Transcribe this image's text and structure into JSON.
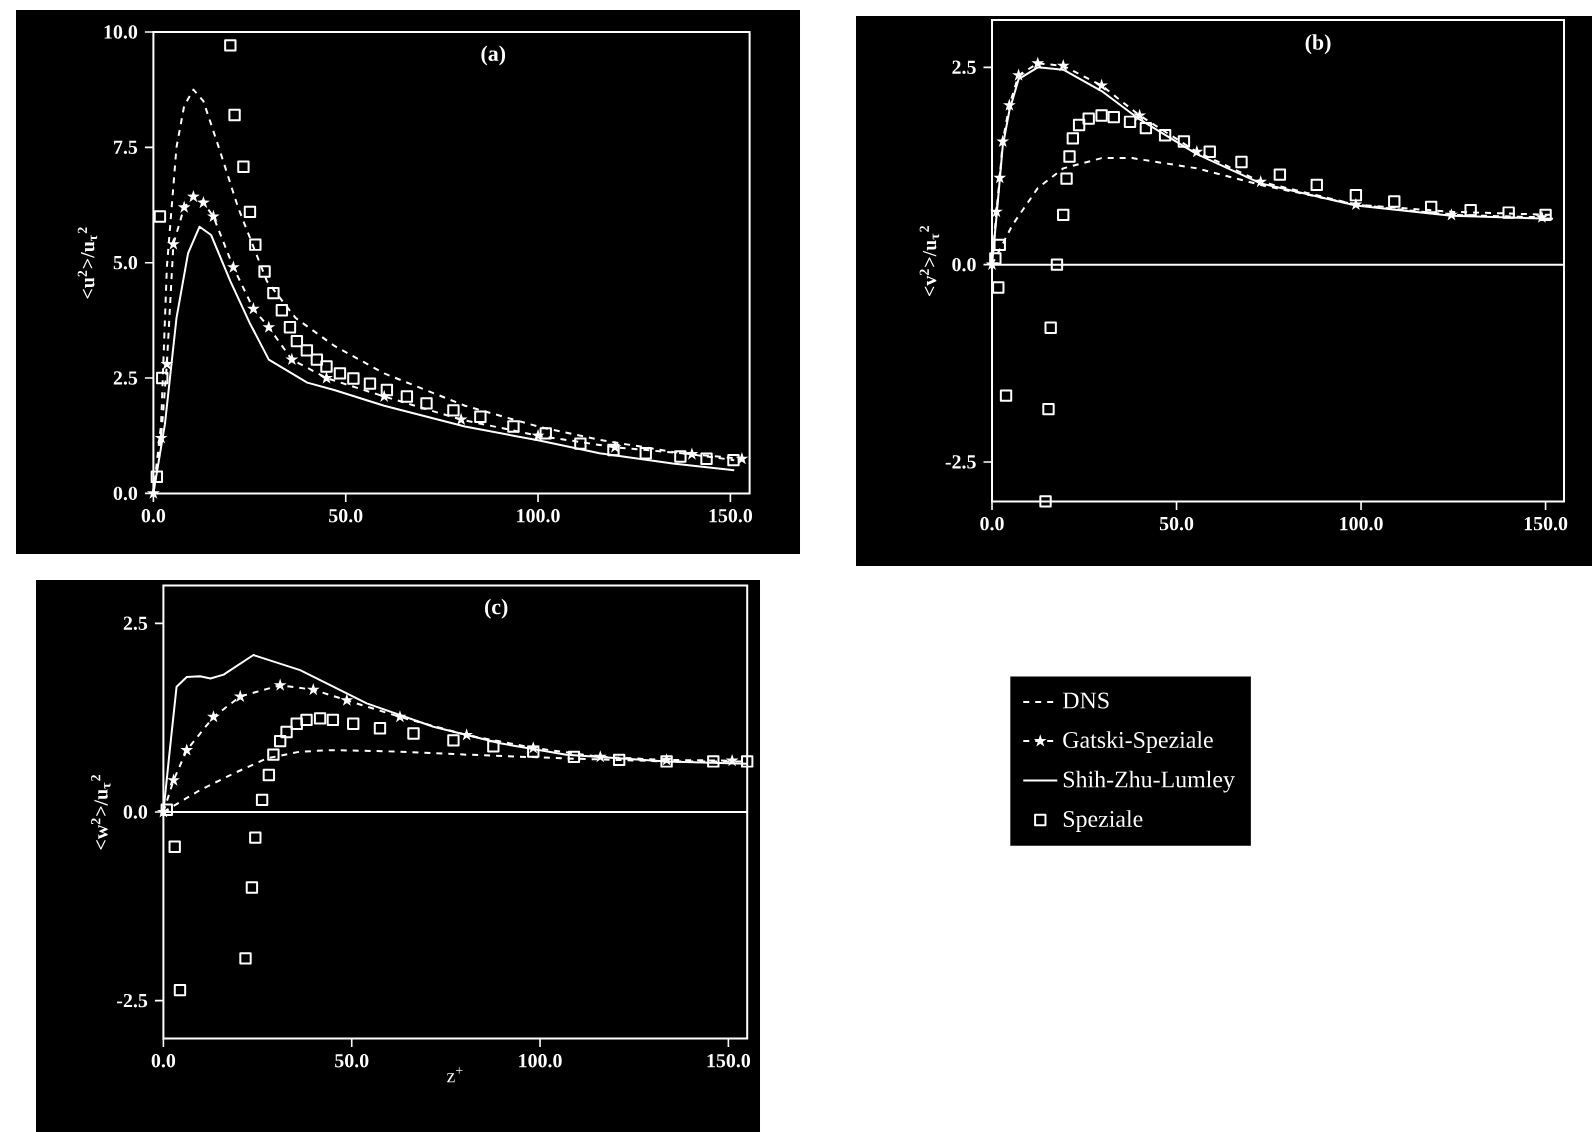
{
  "chart_data": [
    {
      "type": "line",
      "title": "(a)",
      "ylabel": "<u$^{2}$>/u$_{τ}$$^{2}$",
      "xlim": [
        0,
        155
      ],
      "ylim": [
        0,
        10
      ],
      "xticks": [
        {
          "value": 0,
          "label": "0.0"
        },
        {
          "value": 50,
          "label": "50.0"
        },
        {
          "value": 100,
          "label": "100.0"
        },
        {
          "value": 150,
          "label": "150.0"
        }
      ],
      "yticks": [
        {
          "value": 0,
          "label": "0.0"
        },
        {
          "value": 2.5,
          "label": "2.5"
        },
        {
          "value": 5,
          "label": "5.0"
        },
        {
          "value": 7.5,
          "label": "7.5"
        },
        {
          "value": 10,
          "label": "10.0"
        }
      ],
      "series": [
        {
          "type": "line",
          "color": "#ffffff",
          "line_style": "dashed",
          "marker": "none",
          "x": [
            0,
            2,
            3.5,
            6,
            8,
            10.4,
            13,
            17,
            22,
            29.5,
            37,
            47,
            60,
            81,
            100,
            116,
            135,
            151
          ],
          "values": [
            0,
            1.5,
            4.9,
            7.5,
            8.4,
            8.75,
            8.5,
            7.5,
            6.2,
            4.6,
            3.8,
            3.2,
            2.6,
            1.9,
            1.45,
            1.16,
            0.9,
            0.72
          ]
        },
        {
          "type": "line",
          "color": "#ffffff",
          "line_style": "dashed",
          "marker": "star",
          "x": [
            0,
            2,
            3.5,
            5.2,
            8,
            10.4,
            13,
            15.6,
            20.8,
            26,
            30,
            36,
            45,
            60,
            80,
            100,
            120,
            140,
            153
          ],
          "values": [
            0,
            1.2,
            2.8,
            5.4,
            6.2,
            6.43,
            6.3,
            6.0,
            4.9,
            4.0,
            3.6,
            2.9,
            2.5,
            2.1,
            1.6,
            1.25,
            1.0,
            0.85,
            0.75
          ]
        },
        {
          "type": "line",
          "color": "#ffffff",
          "line_style": "solid",
          "marker": "none",
          "x": [
            0,
            3,
            6,
            9,
            12,
            15,
            20,
            25,
            30,
            40,
            47,
            60,
            81,
            100,
            116,
            135,
            151
          ],
          "values": [
            0,
            1.5,
            3.8,
            5.2,
            5.78,
            5.6,
            4.6,
            3.7,
            2.9,
            2.4,
            2.24,
            1.9,
            1.45,
            1.15,
            0.87,
            0.65,
            0.5
          ]
        },
        {
          "type": "scatter",
          "color": "#ffffff",
          "marker": "square",
          "x": [
            0.9,
            1.7,
            2.3,
            20,
            21.1,
            23.4,
            25.1,
            26.5,
            28.9,
            31.2,
            33.4,
            35.5,
            37.3,
            39.9,
            42.5,
            45,
            48.5,
            52,
            56.3,
            60.7,
            65.9,
            71,
            78,
            85,
            93.6,
            102,
            111,
            119.6,
            128,
            137,
            143.8,
            150.8
          ],
          "values": [
            0.36,
            6.0,
            2.5,
            9.71,
            8.2,
            7.08,
            6.1,
            5.39,
            4.81,
            4.34,
            3.97,
            3.6,
            3.3,
            3.1,
            2.9,
            2.75,
            2.6,
            2.49,
            2.38,
            2.24,
            2.1,
            1.95,
            1.8,
            1.66,
            1.45,
            1.3,
            1.08,
            0.94,
            0.87,
            0.8,
            0.75,
            0.72
          ]
        }
      ]
    },
    {
      "type": "line",
      "title": "(b)",
      "ylabel": "<v$^{2}$>/u$_{τ}$$^{2}$",
      "xlim": [
        0,
        155
      ],
      "ylim": [
        -3.0,
        3.1
      ],
      "xticks": [
        {
          "value": 0,
          "label": "0.0"
        },
        {
          "value": 50,
          "label": "50.0"
        },
        {
          "value": 100,
          "label": "100.0"
        },
        {
          "value": 150,
          "label": "150.0"
        }
      ],
      "yticks": [
        {
          "value": -2.5,
          "label": "-2.5"
        },
        {
          "value": 0,
          "label": "0.0"
        },
        {
          "value": 2.5,
          "label": "2.5"
        }
      ],
      "ref_lines": [
        {
          "axis": "y",
          "value": 0,
          "color": "#ffffff"
        }
      ],
      "series": [
        {
          "type": "line",
          "color": "#ffffff",
          "line_style": "dashed",
          "marker": "none",
          "x": [
            0,
            5.5,
            12.4,
            19.3,
            29.7,
            38,
            55.5,
            72.8,
            98.6,
            124.5,
            152
          ],
          "values": [
            0,
            0.5,
            0.97,
            1.22,
            1.35,
            1.35,
            1.22,
            1.01,
            0.76,
            0.67,
            0.63
          ]
        },
        {
          "type": "line",
          "color": "#ffffff",
          "line_style": "dashed",
          "marker": "star",
          "x": [
            0,
            1.2,
            2.1,
            2.9,
            4.7,
            7.2,
            12.4,
            19.3,
            29.7,
            40,
            55.5,
            72.8,
            98.6,
            124.5,
            149
          ],
          "values": [
            0,
            0.67,
            1.1,
            1.56,
            2.02,
            2.4,
            2.55,
            2.52,
            2.27,
            1.89,
            1.43,
            1.05,
            0.76,
            0.63,
            0.6
          ]
        },
        {
          "type": "line",
          "color": "#ffffff",
          "line_style": "solid",
          "marker": "none",
          "x": [
            0,
            1.2,
            2.9,
            4.7,
            7.2,
            12.4,
            19.3,
            29.7,
            40,
            55.5,
            72.8,
            98.6,
            124.5,
            152
          ],
          "values": [
            0,
            0.6,
            1.5,
            1.95,
            2.35,
            2.5,
            2.47,
            2.2,
            1.84,
            1.4,
            1.03,
            0.75,
            0.62,
            0.58
          ]
        },
        {
          "type": "scatter",
          "color": "#ffffff",
          "marker": "square",
          "x": [
            0.9,
            1.7,
            2.1,
            3.8,
            14.5,
            15.3,
            15.9,
            17.6,
            19.3,
            20.2,
            21,
            21.9,
            23.6,
            26.2,
            29.7,
            33,
            37.4,
            41.7,
            46.9,
            52,
            59,
            67.6,
            78,
            88,
            98.6,
            109,
            119,
            129.7,
            140,
            150
          ],
          "values": [
            0.08,
            -0.29,
            0.25,
            -1.66,
            -3.0,
            -1.83,
            -0.8,
            0.0,
            0.63,
            1.09,
            1.37,
            1.6,
            1.77,
            1.85,
            1.89,
            1.87,
            1.81,
            1.73,
            1.64,
            1.56,
            1.43,
            1.3,
            1.14,
            1.01,
            0.88,
            0.8,
            0.73,
            0.69,
            0.66,
            0.63
          ]
        }
      ]
    },
    {
      "type": "line",
      "title": "(c)",
      "xlabel": "z$^{+}$",
      "ylabel": "<w$^{2}$>/u$_{τ}$$^{2}$",
      "xlim": [
        0,
        155
      ],
      "ylim": [
        -3.0,
        3.0
      ],
      "legend": "right",
      "xticks": [
        {
          "value": 0,
          "label": "0.0"
        },
        {
          "value": 50,
          "label": "50.0"
        },
        {
          "value": 100,
          "label": "100.0"
        },
        {
          "value": 150,
          "label": "150.0"
        }
      ],
      "yticks": [
        {
          "value": -2.5,
          "label": "-2.5"
        },
        {
          "value": 0,
          "label": "0.0"
        },
        {
          "value": 2.5,
          "label": "2.5"
        }
      ],
      "ref_lines": [
        {
          "axis": "y",
          "value": 0,
          "color": "#ffffff"
        }
      ],
      "series": [
        {
          "name": "DNS",
          "type": "line",
          "color": "#ffffff",
          "line_style": "dashed",
          "marker": "none",
          "x": [
            0,
            9.7,
            18.6,
            27.4,
            36.3,
            45,
            62.8,
            80.5,
            107,
            133.6,
            154.9
          ],
          "values": [
            0,
            0.29,
            0.51,
            0.71,
            0.8,
            0.82,
            0.8,
            0.76,
            0.71,
            0.67,
            0.67
          ]
        },
        {
          "name": "Gatski-Speziale",
          "type": "line",
          "color": "#ffffff",
          "line_style": "dashed",
          "marker": "star",
          "x": [
            0,
            2.7,
            6.2,
            13.3,
            20.4,
            31,
            39.8,
            48.7,
            62.8,
            80.5,
            98.2,
            116,
            133.6,
            151
          ],
          "values": [
            0,
            0.42,
            0.82,
            1.26,
            1.53,
            1.68,
            1.62,
            1.48,
            1.26,
            1.02,
            0.85,
            0.73,
            0.69,
            0.68
          ]
        },
        {
          "name": "Shih-Zhu-Lumley",
          "type": "line",
          "color": "#ffffff",
          "line_style": "solid",
          "marker": "none",
          "x": [
            0,
            1.8,
            3.5,
            6.2,
            9.7,
            12.5,
            16,
            23.9,
            36.3,
            54,
            71.7,
            89.4,
            107,
            133.6,
            154.9
          ],
          "values": [
            0,
            0.87,
            1.66,
            1.79,
            1.8,
            1.77,
            1.82,
            2.08,
            1.88,
            1.44,
            1.13,
            0.91,
            0.76,
            0.67,
            0.64
          ]
        },
        {
          "name": "Speziale",
          "type": "scatter",
          "color": "#ffffff",
          "marker": "square",
          "x": [
            0.9,
            3,
            4.4,
            21.8,
            23.5,
            24.4,
            26.2,
            28,
            29.2,
            31,
            32.7,
            35.4,
            38,
            41.6,
            45,
            50.4,
            57.5,
            66.4,
            77,
            87.6,
            98.2,
            109,
            121,
            133.6,
            146,
            155
          ],
          "values": [
            0.03,
            -0.46,
            -2.36,
            -1.94,
            -1.0,
            -0.34,
            0.16,
            0.49,
            0.76,
            0.94,
            1.06,
            1.17,
            1.22,
            1.24,
            1.22,
            1.17,
            1.11,
            1.04,
            0.95,
            0.87,
            0.8,
            0.73,
            0.69,
            0.67,
            0.67,
            0.67
          ]
        }
      ]
    }
  ]
}
